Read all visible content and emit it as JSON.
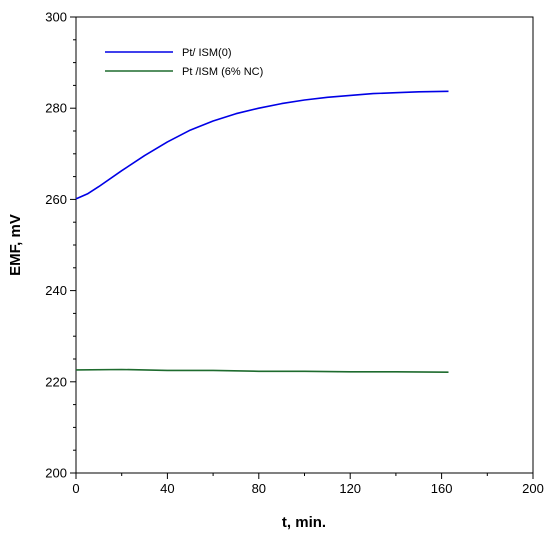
{
  "chart_data": {
    "type": "line",
    "title": "",
    "xlabel": "t, min.",
    "ylabel": "EMF, mV",
    "xlim": [
      0,
      200
    ],
    "ylim": [
      200,
      300
    ],
    "x_ticks": [
      0,
      40,
      80,
      120,
      160,
      200
    ],
    "y_ticks": [
      200,
      220,
      240,
      260,
      280,
      300
    ],
    "x_tick_labels": [
      "0",
      "40",
      "80",
      "120",
      "160",
      "200"
    ],
    "y_tick_labels": [
      "200",
      "220",
      "240",
      "260",
      "280",
      "300"
    ],
    "grid": false,
    "legend_position": "top-left",
    "series": [
      {
        "name": "Pt/ ISM(0)",
        "color": "#0000e6",
        "x": [
          0,
          5,
          10,
          20,
          30,
          40,
          50,
          60,
          70,
          80,
          90,
          100,
          110,
          120,
          130,
          140,
          150,
          163
        ],
        "y": [
          260.1,
          261.2,
          262.8,
          266.3,
          269.6,
          272.6,
          275.2,
          277.2,
          278.8,
          280.0,
          281.0,
          281.8,
          282.4,
          282.8,
          283.2,
          283.4,
          283.6,
          283.7
        ]
      },
      {
        "name": "Pt /ISM (6% NC)",
        "color": "#1e6b2e",
        "x": [
          0,
          20,
          40,
          60,
          80,
          100,
          120,
          140,
          163
        ],
        "y": [
          222.6,
          222.7,
          222.5,
          222.5,
          222.3,
          222.3,
          222.2,
          222.2,
          222.1
        ]
      }
    ]
  }
}
